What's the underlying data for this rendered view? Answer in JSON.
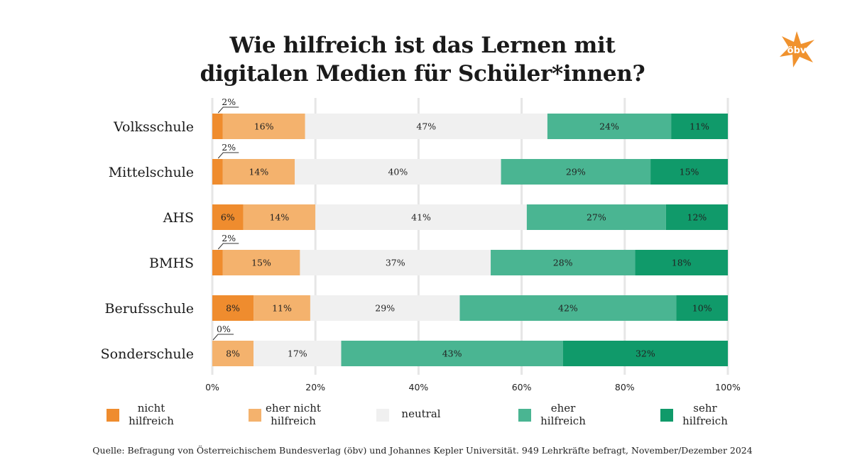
{
  "title": {
    "line1": "Wie hilfreich ist das Lernen mit",
    "line2": "digitalen Medien für Schüler*innen?"
  },
  "logo": {
    "text": "öbv",
    "icon": "star-logo-icon",
    "color": "#f0922e"
  },
  "chart_data": {
    "type": "bar",
    "orientation": "horizontal",
    "stacked": true,
    "title": "Wie hilfreich ist das Lernen mit digitalen Medien für Schüler*innen?",
    "categories": [
      "Volksschule",
      "Mittelschule",
      "AHS",
      "BMHS",
      "Berufsschule",
      "Sonderschule"
    ],
    "series": [
      {
        "name": "nicht\nhilfreich",
        "color": "#ef8c2e",
        "values": [
          2,
          2,
          6,
          2,
          8,
          0
        ]
      },
      {
        "name": "eher nicht\nhilfreich",
        "color": "#f4b26d",
        "values": [
          16,
          14,
          14,
          15,
          11,
          8
        ]
      },
      {
        "name": "neutral",
        "color": "#f0f0f0",
        "values": [
          47,
          40,
          41,
          37,
          29,
          17
        ]
      },
      {
        "name": "eher\nhilfreich",
        "color": "#4ab592",
        "values": [
          24,
          29,
          27,
          28,
          42,
          43
        ]
      },
      {
        "name": "sehr\nhilfreich",
        "color": "#109a6a",
        "values": [
          11,
          15,
          12,
          18,
          10,
          32
        ]
      }
    ],
    "value_labels": [
      [
        "2%",
        "16%",
        "47%",
        "24%",
        "11%"
      ],
      [
        "2%",
        "14%",
        "40%",
        "29%",
        "15%"
      ],
      [
        "6%",
        "14%",
        "41%",
        "27%",
        "12%"
      ],
      [
        "2%",
        "15%",
        "37%",
        "28%",
        "18%"
      ],
      [
        "8%",
        "11%",
        "29%",
        "42%",
        "10%"
      ],
      [
        "0%",
        "8%",
        "17%",
        "43%",
        "32%"
      ]
    ],
    "xlim": [
      0,
      100
    ],
    "xticks": [
      0,
      20,
      40,
      60,
      80,
      100
    ],
    "xtick_labels": [
      "0%",
      "20%",
      "40%",
      "60%",
      "80%",
      "100%"
    ],
    "grid": true,
    "legend_position": "bottom"
  },
  "source": "Quelle: Befragung von Österreichischem Bundesverlag (öbv) und Johannes Kepler Universität. 949 Lehrkräfte befragt, November/Dezember 2024"
}
